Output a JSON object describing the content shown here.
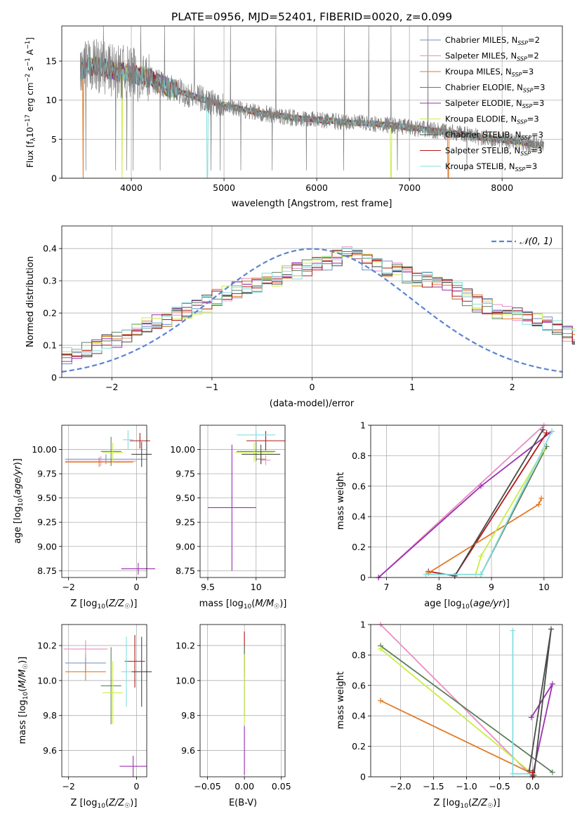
{
  "title": "PLATE=0956, MJD=52401, FIBERID=0020, z=0.099",
  "models": [
    {
      "name": "Chabrier MILES, N_SSP=2",
      "prefix": "Chabrier MILES, N",
      "sub": "SSP",
      "suffix": "=2",
      "color": "#6c8ebf",
      "slug": "chabrier-miles"
    },
    {
      "name": "Salpeter MILES, N_SSP=2",
      "prefix": "Salpeter MILES, N",
      "sub": "SSP",
      "suffix": "=2",
      "color": "#e58fc2",
      "slug": "salpeter-miles"
    },
    {
      "name": "Kroupa MILES, N_SSP=3",
      "prefix": "Kroupa MILES, N",
      "sub": "SSP",
      "suffix": "=3",
      "color": "#e07b28",
      "slug": "kroupa-miles"
    },
    {
      "name": "Chabrier ELODIE, N_SSP=3",
      "prefix": "Chabrier ELODIE, N",
      "sub": "SSP",
      "suffix": "=3",
      "color": "#5e7f5e",
      "slug": "chabrier-elodie"
    },
    {
      "name": "Salpeter ELODIE, N_SSP=3",
      "prefix": "Salpeter ELODIE, N",
      "sub": "SSP",
      "suffix": "=3",
      "color": "#9b30b0",
      "slug": "salpeter-elodie"
    },
    {
      "name": "Kroupa ELODIE, N_SSP=3",
      "prefix": "Kroupa ELODIE, N",
      "sub": "SSP",
      "suffix": "=3",
      "color": "#c9ee45",
      "slug": "kroupa-elodie"
    },
    {
      "name": "Chabrier STELIB, N_SSP=3",
      "prefix": "Chabrier STELIB, N",
      "sub": "SSP",
      "suffix": "=3",
      "color": "#4a4a4a",
      "slug": "chabrier-stelib"
    },
    {
      "name": "Salpeter STELIB, N_SSP=3",
      "prefix": "Salpeter STELIB, N",
      "sub": "SSP",
      "suffix": "=3",
      "color": "#b01818",
      "slug": "salpeter-stelib"
    },
    {
      "name": "Kroupa STELIB, N_SSP=3",
      "prefix": "Kroupa STELIB, N",
      "sub": "SSP",
      "suffix": "=3",
      "color": "#86dede",
      "slug": "kroupa-stelib"
    }
  ],
  "data_color": "#808080",
  "gauss_color": "#5b84d2",
  "chart_data": [
    {
      "id": "spectrum",
      "type": "line",
      "xlabel": "wavelength [Angstrom, rest frame]",
      "ylabel": "Flux [f_λ 10^-17 erg cm^-2 s^-1 A^-1]",
      "ylabel_parts": {
        "a": "Flux [f",
        "b": "λ",
        "c": "10",
        "d": "−17",
        "e": " erg cm",
        "f": "−2",
        "g": " s",
        "h": "−1",
        "i": " A",
        "j": "−1",
        "k": "]"
      },
      "xlim": [
        3250,
        8650
      ],
      "ylim": [
        0,
        19.5
      ],
      "xticks": [
        4000,
        5000,
        6000,
        7000,
        8000
      ],
      "yticks": [
        0,
        5,
        10,
        15
      ],
      "continuum": {
        "x": [
          3450,
          3600,
          3800,
          4000,
          4200,
          4400,
          4600,
          4800,
          5000,
          5200,
          5400,
          5600,
          5800,
          6000,
          6200,
          6400,
          6600,
          6800,
          7000,
          7200,
          7400,
          7600,
          7800,
          8000,
          8200,
          8400
        ],
        "y": [
          13.8,
          14.5,
          13.8,
          13.4,
          12.8,
          11.6,
          10.8,
          10.0,
          9.4,
          8.8,
          8.3,
          8.0,
          7.7,
          7.5,
          7.3,
          7.1,
          7.0,
          6.8,
          6.5,
          6.2,
          5.9,
          5.6,
          5.2,
          4.9,
          4.6,
          4.3
        ]
      },
      "model_dips": [
        {
          "model": 2,
          "x": [
            3480,
            7420
          ]
        },
        {
          "model": 5,
          "x": [
            3900,
            6800
          ]
        },
        {
          "model": 8,
          "x": [
            4820
          ]
        }
      ],
      "data_spikes_x": [
        3700,
        4100,
        4360,
        4680,
        5070,
        5560,
        6300,
        6560,
        6800,
        7200
      ],
      "data_dips_x": [
        3510,
        3830,
        3950,
        4020,
        4310,
        4860,
        4960,
        5180,
        5520,
        5890,
        6290,
        6870,
        7620
      ]
    },
    {
      "id": "residuals",
      "type": "step-histogram",
      "xlabel": "(data-model)/error",
      "ylabel": "Normed distribution",
      "xlim": [
        -2.5,
        2.5
      ],
      "ylim": [
        0,
        0.47
      ],
      "xticks": [
        -2,
        -1,
        0,
        1,
        2
      ],
      "yticks": [
        0.0,
        0.1,
        0.2,
        0.3,
        0.4
      ],
      "bin_width": 0.1,
      "gaussian_label": "N(0,1)",
      "envelope": [
        0.07,
        0.08,
        0.09,
        0.1,
        0.11,
        0.12,
        0.13,
        0.15,
        0.16,
        0.17,
        0.18,
        0.2,
        0.21,
        0.22,
        0.23,
        0.25,
        0.26,
        0.27,
        0.28,
        0.29,
        0.3,
        0.31,
        0.32,
        0.33,
        0.34,
        0.35,
        0.36,
        0.37,
        0.38,
        0.38,
        0.36,
        0.35,
        0.34,
        0.33,
        0.32,
        0.31,
        0.3,
        0.29,
        0.28,
        0.27,
        0.25,
        0.23,
        0.22,
        0.21,
        0.2,
        0.19,
        0.18,
        0.17,
        0.16,
        0.15,
        0.14,
        0.13,
        0.12,
        0.11,
        0.1,
        0.09,
        0.08,
        0.07,
        0.06,
        0.055,
        0.05,
        0.045,
        0.04,
        0.035,
        0.03,
        0.03,
        0.025,
        0.025,
        0.02,
        0.02
      ]
    },
    {
      "id": "age-vs-Z",
      "type": "errorbar",
      "xlabel": "Z [log10(Z/Z☉)]",
      "ylabel": "age [log10(age/yr)]",
      "xlim": [
        -2.2,
        0.3
      ],
      "ylim": [
        8.68,
        10.25
      ],
      "xticks": [
        -2,
        0
      ],
      "yticks": [
        8.75,
        9.0,
        9.25,
        9.5,
        9.75,
        10.0
      ],
      "ytick_labels": [
        "8.75",
        "9.00",
        "9.25",
        "9.50",
        "9.75",
        "10.00"
      ],
      "points": [
        {
          "model": 0,
          "x": -0.9,
          "xerr": 1.2,
          "y": 9.9,
          "yerr": 0.05
        },
        {
          "model": 1,
          "x": -1.05,
          "xerr": 1.05,
          "y": 9.88,
          "yerr": 0.05
        },
        {
          "model": 2,
          "x": -1.1,
          "xerr": 1.0,
          "y": 9.87,
          "yerr": 0.05
        },
        {
          "model": 3,
          "x": -0.75,
          "xerr": 0.3,
          "y": 9.98,
          "yerr": 0.15
        },
        {
          "model": 5,
          "x": -0.7,
          "xerr": 0.3,
          "y": 9.97,
          "yerr": 0.1
        },
        {
          "model": 6,
          "x": 0.15,
          "xerr": 0.3,
          "y": 9.95,
          "yerr": 0.13
        },
        {
          "model": 7,
          "x": 0.1,
          "xerr": 0.3,
          "y": 10.09,
          "yerr": 0.08
        },
        {
          "model": 8,
          "x": -0.25,
          "xerr": 0.15,
          "y": 10.1,
          "yerr": 0.1
        },
        {
          "model": 4,
          "x": 0.05,
          "xerr": 0.5,
          "y": 8.77,
          "yerr": 0.06
        }
      ]
    },
    {
      "id": "age-vs-mass",
      "type": "errorbar",
      "xlabel": "mass [log10(M/M☉)]",
      "xlim": [
        9.42,
        10.3
      ],
      "ylim": [
        8.68,
        10.25
      ],
      "xticks": [
        9.5,
        10.0
      ],
      "yticks": [
        8.75,
        9.0,
        9.25,
        9.5,
        9.75,
        10.0
      ],
      "ytick_labels": [
        "8.75",
        "9.00",
        "9.25",
        "9.50",
        "9.75",
        "10.00"
      ],
      "points": [
        {
          "model": 0,
          "x": 10.05,
          "xerr": 0.05,
          "y": 9.9,
          "yerr": 0.05
        },
        {
          "model": 1,
          "x": 10.1,
          "xerr": 0.05,
          "y": 9.89,
          "yerr": 0.05
        },
        {
          "model": 2,
          "x": 10.05,
          "xerr": 0.05,
          "y": 9.9,
          "yerr": 0.05
        },
        {
          "model": 3,
          "x": 10.0,
          "xerr": 0.2,
          "y": 9.98,
          "yerr": 0.1
        },
        {
          "model": 5,
          "x": 9.98,
          "xerr": 0.2,
          "y": 9.97,
          "yerr": 0.1
        },
        {
          "model": 6,
          "x": 10.05,
          "xerr": 0.2,
          "y": 9.95,
          "yerr": 0.1
        },
        {
          "model": 7,
          "x": 10.1,
          "xerr": 0.2,
          "y": 10.09,
          "yerr": 0.1
        },
        {
          "model": 8,
          "x": 10.0,
          "xerr": 0.2,
          "y": 10.15,
          "yerr": 0.05
        },
        {
          "model": 4,
          "x": 9.75,
          "xerr": 0.25,
          "y": 9.4,
          "yerr": 0.65
        }
      ]
    },
    {
      "id": "massweight-vs-age",
      "type": "line",
      "xlabel": "age [log10(age/yr)]",
      "ylabel": "mass weight",
      "xlim": [
        6.7,
        10.35
      ],
      "ylim": [
        0,
        1
      ],
      "xticks": [
        7,
        8,
        9,
        10
      ],
      "yticks": [
        0.0,
        0.2,
        0.4,
        0.6,
        0.8,
        1.0
      ],
      "series": [
        {
          "model": 1,
          "x": [
            6.85,
            10.0
          ],
          "y": [
            0.0,
            1.0
          ]
        },
        {
          "model": 4,
          "x": [
            6.85,
            8.8,
            10.15
          ],
          "y": [
            0.0,
            0.6,
            0.96
          ]
        },
        {
          "model": 7,
          "x": [
            7.8,
            8.3,
            10.05
          ],
          "y": [
            0.04,
            0.01,
            0.95
          ]
        },
        {
          "model": 2,
          "x": [
            7.8,
            9.9,
            9.95
          ],
          "y": [
            0.03,
            0.48,
            0.52
          ]
        },
        {
          "model": 6,
          "x": [
            8.3,
            9.98
          ],
          "y": [
            0.01,
            0.97
          ]
        },
        {
          "model": 3,
          "x": [
            8.8,
            10.05
          ],
          "y": [
            0.02,
            0.86
          ]
        },
        {
          "model": 5,
          "x": [
            8.7,
            8.8,
            10.0
          ],
          "y": [
            0.02,
            0.14,
            0.84
          ]
        },
        {
          "model": 8,
          "x": [
            7.75,
            8.8,
            10.15
          ],
          "y": [
            0.02,
            0.02,
            0.96
          ]
        }
      ]
    },
    {
      "id": "mass-vs-Z",
      "type": "errorbar",
      "xlabel": "Z [log10(Z/Z☉)]",
      "ylabel": "mass [log10(M/M☉)]",
      "xlim": [
        -2.2,
        0.3
      ],
      "ylim": [
        9.45,
        10.32
      ],
      "xticks": [
        -2,
        0
      ],
      "yticks": [
        9.6,
        9.8,
        10.0,
        10.2
      ],
      "ytick_labels": [
        "9.6",
        "9.8",
        "10.0",
        "10.2"
      ],
      "points": [
        {
          "model": 0,
          "x": -1.5,
          "xerr": 0.6,
          "y": 10.1,
          "yerr": 0.05
        },
        {
          "model": 1,
          "x": -1.5,
          "xerr": 0.65,
          "y": 10.18,
          "yerr": 0.05
        },
        {
          "model": 2,
          "x": -1.5,
          "xerr": 0.6,
          "y": 10.05,
          "yerr": 0.05
        },
        {
          "model": 3,
          "x": -0.75,
          "xerr": 0.3,
          "y": 9.97,
          "yerr": 0.22
        },
        {
          "model": 5,
          "x": -0.7,
          "xerr": 0.3,
          "y": 9.93,
          "yerr": 0.18
        },
        {
          "model": 6,
          "x": 0.15,
          "xerr": 0.3,
          "y": 10.05,
          "yerr": 0.2
        },
        {
          "model": 7,
          "x": -0.05,
          "xerr": 0.3,
          "y": 10.11,
          "yerr": 0.15
        },
        {
          "model": 8,
          "x": -0.3,
          "xerr": 0.15,
          "y": 10.05,
          "yerr": 0.2
        },
        {
          "model": 4,
          "x": -0.1,
          "xerr": 0.4,
          "y": 9.51,
          "yerr": 0.06
        }
      ]
    },
    {
      "id": "mass-vs-EBV",
      "type": "errorbar",
      "xlabel": "E(B-V)",
      "xlim": [
        -0.06,
        0.055
      ],
      "ylim": [
        9.45,
        10.32
      ],
      "xticks": [
        -0.05,
        0.0,
        0.05
      ],
      "yticks": [
        9.6,
        9.8,
        10.0,
        10.2
      ],
      "xtick_labels": [
        "−0.05",
        "0.00",
        "0.05"
      ],
      "ytick_labels": [
        "9.6",
        "9.8",
        "10.0",
        "10.2"
      ],
      "points": [
        {
          "model": 7,
          "x": 0.0,
          "xerr": 0.0,
          "y": 10.15,
          "yerr": 0.13
        },
        {
          "model": 3,
          "x": 0.0,
          "xerr": 0.0,
          "y": 10.0,
          "yerr": 0.2
        },
        {
          "model": 5,
          "x": 0.0,
          "xerr": 0.0,
          "y": 9.95,
          "yerr": 0.2
        },
        {
          "model": 4,
          "x": 0.0,
          "xerr": 0.0,
          "y": 9.6,
          "yerr": 0.14
        }
      ]
    },
    {
      "id": "massweight-vs-Z",
      "type": "line",
      "xlabel": "Z [log10(Z/Z☉)]",
      "ylabel": "mass weight",
      "xlim": [
        -2.45,
        0.45
      ],
      "ylim": [
        0,
        1
      ],
      "xticks": [
        -2.0,
        -1.5,
        -1.0,
        -0.5,
        0.0
      ],
      "xtick_labels": [
        "−2.0",
        "−1.5",
        "−1.0",
        "−0.5",
        "0.0"
      ],
      "yticks": [
        0.0,
        0.2,
        0.4,
        0.6,
        0.8,
        1.0
      ],
      "series": [
        {
          "model": 1,
          "x": [
            -2.3,
            0.0
          ],
          "y": [
            1.0,
            0.0
          ]
        },
        {
          "model": 2,
          "x": [
            -2.3,
            0.0,
            0.0
          ],
          "y": [
            0.5,
            0.02,
            0.02
          ]
        },
        {
          "model": 3,
          "x": [
            -2.3,
            0.3
          ],
          "y": [
            0.86,
            0.03
          ]
        },
        {
          "model": 5,
          "x": [
            -2.3,
            0.0
          ],
          "y": [
            0.84,
            0.02
          ]
        },
        {
          "model": 4,
          "x": [
            -0.02,
            0.3,
            0.0
          ],
          "y": [
            0.39,
            0.61,
            0.01
          ]
        },
        {
          "model": 6,
          "x": [
            -0.05,
            0.28,
            0.02
          ],
          "y": [
            0.04,
            0.97,
            0.01
          ]
        },
        {
          "model": 8,
          "x": [
            -0.3,
            -0.3,
            0.0
          ],
          "y": [
            0.96,
            0.02,
            0.02
          ]
        },
        {
          "model": 7,
          "x": [
            0.0,
            0.0
          ],
          "y": [
            0.0,
            0.03
          ]
        }
      ]
    }
  ]
}
